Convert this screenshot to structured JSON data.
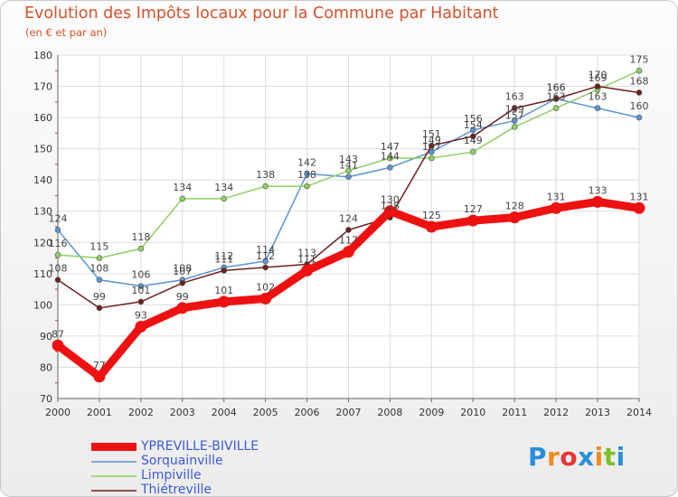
{
  "header": {
    "title": "Evolution des Impôts locaux pour la Commune par Habitant",
    "subtitle": "(en € et par an)"
  },
  "logo": {
    "letters": [
      "P",
      "r",
      "o",
      "x",
      "i",
      "t",
      "i"
    ],
    "colors": [
      "#2a8fd8",
      "#f08a1c",
      "#e83535",
      "#2a8fd8",
      "#f08a1c",
      "#7bbf2a",
      "#2a8fd8"
    ]
  },
  "chart_data": {
    "type": "line",
    "title": "Evolution des Impôts locaux pour la Commune par Habitant",
    "subtitle": "(en € et par an)",
    "xlabel": "",
    "ylabel": "",
    "ylim": [
      70,
      180
    ],
    "yticks": [
      70,
      80,
      90,
      100,
      110,
      120,
      130,
      140,
      150,
      160,
      170,
      180
    ],
    "x": [
      "2000",
      "2001",
      "2002",
      "2003",
      "2004",
      "2005",
      "2006",
      "2007",
      "2008",
      "2009",
      "2010",
      "2011",
      "2012",
      "2013",
      "2014"
    ],
    "grid": true,
    "legend_position": "bottom-left",
    "series": [
      {
        "name": "Sorquainville",
        "color": "#5b94cf",
        "values": [
          124,
          108,
          106,
          108,
          112,
          114,
          142,
          141,
          144,
          149,
          156,
          159,
          166,
          163,
          160
        ],
        "labels": [
          "124",
          "108",
          "106",
          "108",
          "112",
          "114",
          "142",
          "141",
          "144",
          "149",
          "156",
          "159",
          "166",
          "163",
          "160"
        ]
      },
      {
        "name": "Limpiville",
        "color": "#8fcf62",
        "values": [
          116,
          115,
          118,
          134,
          134,
          138,
          138,
          143,
          147,
          147,
          149,
          157,
          163,
          169,
          175
        ],
        "labels": [
          "116",
          "115",
          "118",
          "134",
          "134",
          "138",
          "138",
          "143",
          "147",
          "147",
          "149",
          "157",
          "163",
          "169",
          "175"
        ]
      },
      {
        "name": "Thiétreville",
        "color": "#6b2020",
        "values": [
          108,
          99,
          101,
          107,
          111,
          112,
          113,
          124,
          128,
          151,
          154,
          163,
          166,
          170,
          168
        ],
        "labels": [
          "108",
          "99",
          "101",
          "107",
          "111",
          "112",
          "113",
          "124",
          "128",
          "151",
          "154",
          "163",
          "166",
          "170",
          "168"
        ]
      },
      {
        "name": "YPREVILLE-BIVILLE",
        "color": "#ee1111",
        "values": [
          87,
          77,
          93,
          99,
          101,
          102,
          111,
          117,
          130,
          125,
          127,
          128,
          131,
          133,
          131
        ],
        "labels": [
          "87",
          "77",
          "93",
          "99",
          "101",
          "102",
          "111",
          "117",
          "130",
          "125",
          "127",
          "128",
          "131",
          "133",
          "131"
        ]
      }
    ]
  }
}
